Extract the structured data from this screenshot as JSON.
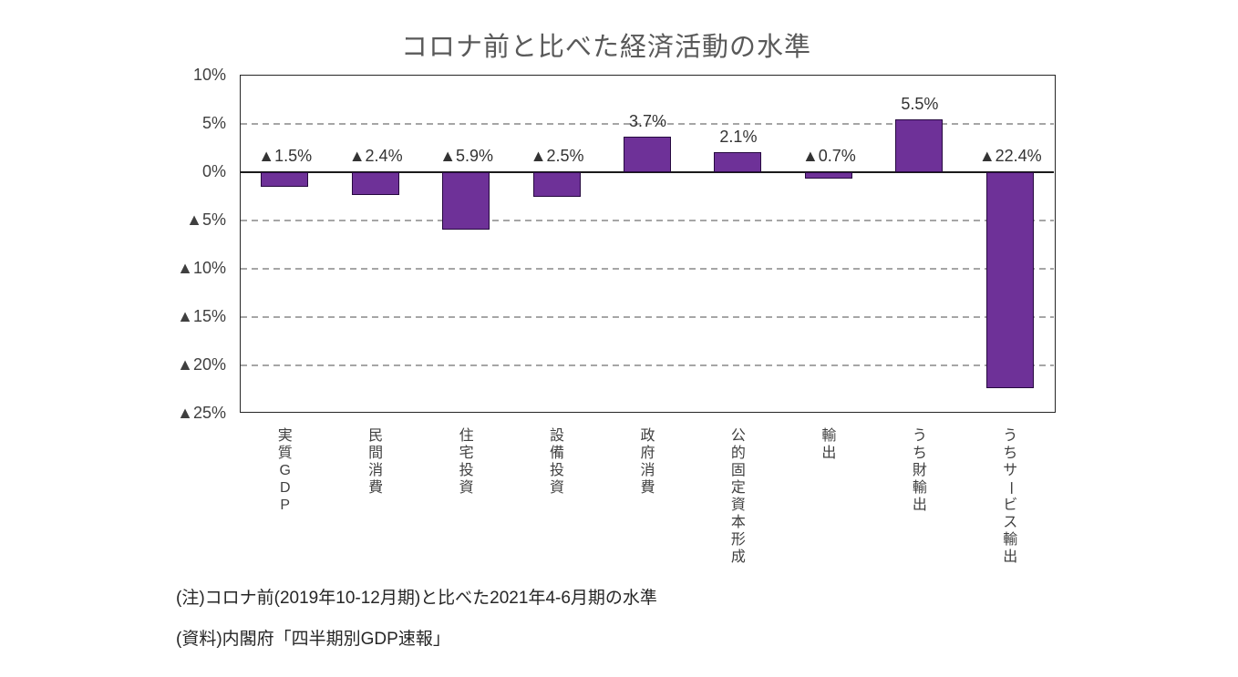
{
  "title": "コロナ前と比べた経済活動の水準",
  "chart_data": {
    "type": "bar",
    "title": "コロナ前と比べた経済活動の水準",
    "categories": [
      "実質GDP",
      "民間消費",
      "住宅投資",
      "設備投資",
      "政府消費",
      "公的固定資本形成",
      "輸出",
      "うち財輸出",
      "うちサービス輸出"
    ],
    "values": [
      -1.5,
      -2.4,
      -5.9,
      -2.5,
      3.7,
      2.1,
      -0.7,
      5.5,
      -22.4
    ],
    "data_labels": [
      "▲1.5%",
      "▲2.4%",
      "▲5.9%",
      "▲2.5%",
      "3.7%",
      "2.1%",
      "▲0.7%",
      "5.5%",
      "▲22.4%"
    ],
    "y_ticks": [
      10,
      5,
      0,
      -5,
      -10,
      -15,
      -20,
      -25
    ],
    "y_tick_labels": [
      "10%",
      "5%",
      "0%",
      "▲5%",
      "▲10%",
      "▲15%",
      "▲20%",
      "▲25%"
    ],
    "ylim": [
      -25,
      10
    ],
    "xlabel": "",
    "ylabel": "",
    "grid": "horizontal dashed at 5% intervals",
    "legend": "none",
    "negative_marker": "▲",
    "bar_color": "#6E3198",
    "bar_border_color": "#26093F",
    "gridline_color": "#a6a6a6",
    "title_color": "#595959"
  },
  "notes": [
    "(注)コロナ前(2019年10-12月期)と比べた2021年4-6月期の水準",
    "(資料)内閣府「四半期別GDP速報」"
  ]
}
